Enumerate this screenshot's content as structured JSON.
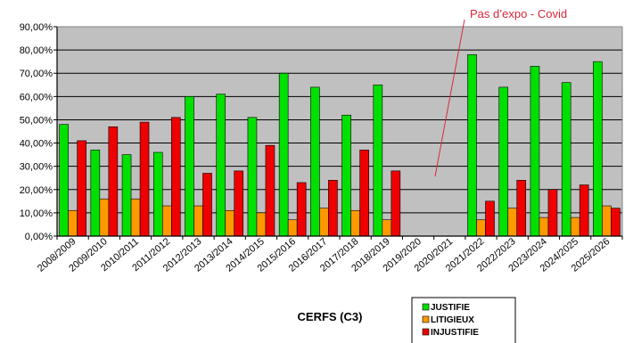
{
  "chart_data": {
    "type": "bar",
    "title": "",
    "xlabel": "CERFS (C3)",
    "ylabel": "",
    "ylim": [
      0,
      90
    ],
    "ytick_values": [
      0,
      10,
      20,
      30,
      40,
      50,
      60,
      70,
      80,
      90
    ],
    "ytick_labels": [
      "0,00%",
      "10,00%",
      "20,00%",
      "30,00%",
      "40,00%",
      "50,00%",
      "60,00%",
      "70,00%",
      "80,00%",
      "90,00%"
    ],
    "grid": true,
    "legend_position": "bottom-right",
    "categories": [
      "2008/2009",
      "2009/2010",
      "2010/2011",
      "2011/2012",
      "2012/2013",
      "2013/2014",
      "2014/2015",
      "2015/2016",
      "2016/2017",
      "2017/2018",
      "2018/2019",
      "2019/2020",
      "2020/2021",
      "2021/2022",
      "2022/2023",
      "2023/2024",
      "2024/2025",
      "2025/2026"
    ],
    "series": [
      {
        "name": "JUSTIFIE",
        "color": "#00e000",
        "values": [
          48,
          37,
          35,
          36,
          60,
          61,
          51,
          70,
          64,
          52,
          65,
          null,
          null,
          78,
          64,
          73,
          66,
          75
        ]
      },
      {
        "name": "LITIGIEUX",
        "color": "#ff9900",
        "values": [
          11,
          16,
          16,
          13,
          13,
          11,
          10,
          7,
          12,
          11,
          7,
          null,
          null,
          7,
          12,
          8,
          8,
          13
        ]
      },
      {
        "name": "INJUSTIFIE",
        "color": "#ee0000",
        "values": [
          41,
          47,
          49,
          51,
          27,
          28,
          39,
          23,
          24,
          37,
          28,
          null,
          null,
          15,
          24,
          20,
          22,
          12
        ]
      }
    ],
    "annotation": {
      "text": "Pas d’expo - Covid",
      "color": "#d8263a"
    }
  }
}
